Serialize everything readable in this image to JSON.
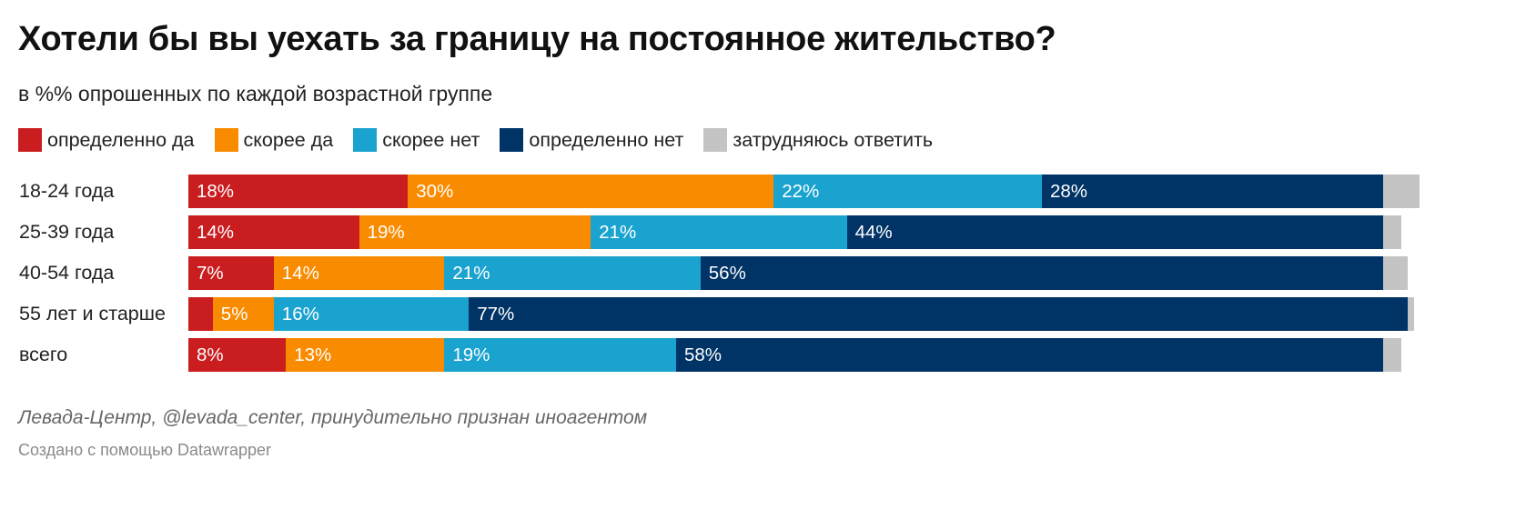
{
  "chart_data": {
    "type": "bar",
    "orientation": "horizontal",
    "stacked": true,
    "title": "Хотели бы вы уехать за границу на постоянное жительство?",
    "subtitle": "в %% опрошенных по каждой возрастной группе",
    "xlabel": "",
    "ylabel": "",
    "xlim": [
      0,
      100
    ],
    "grid": false,
    "legend_position": "top-left",
    "categories": [
      "18-24 года",
      "25-39 года",
      "40-54 года",
      "55 лет и старше",
      "всего"
    ],
    "series": [
      {
        "name": "определенно да",
        "color": "#c91d1f",
        "values": [
          18,
          14,
          7,
          2,
          8
        ],
        "labels": [
          "18%",
          "14%",
          "7%",
          "",
          "8%"
        ]
      },
      {
        "name": "скорее да",
        "color": "#f98b00",
        "values": [
          30,
          19,
          14,
          5,
          13
        ],
        "labels": [
          "30%",
          "19%",
          "14%",
          "5%",
          "13%"
        ]
      },
      {
        "name": "скорее нет",
        "color": "#1aa3cf",
        "values": [
          22,
          21,
          21,
          16,
          19
        ],
        "labels": [
          "22%",
          "21%",
          "21%",
          "16%",
          "19%"
        ]
      },
      {
        "name": "определенно нет",
        "color": "#003366",
        "values": [
          28,
          44,
          56,
          77,
          58
        ],
        "labels": [
          "28%",
          "44%",
          "56%",
          "77%",
          "58%"
        ]
      },
      {
        "name": "затрудняюсь ответить",
        "color": "#c4c4c4",
        "values": [
          3,
          1.5,
          2,
          0.5,
          1.5
        ],
        "labels": [
          "",
          "",
          "",
          "",
          ""
        ]
      }
    ]
  },
  "footer": {
    "source": "Левада-Центр, @levada_center, принудительно признан иноагентом",
    "byline": "Создано с помощью Datawrapper"
  }
}
